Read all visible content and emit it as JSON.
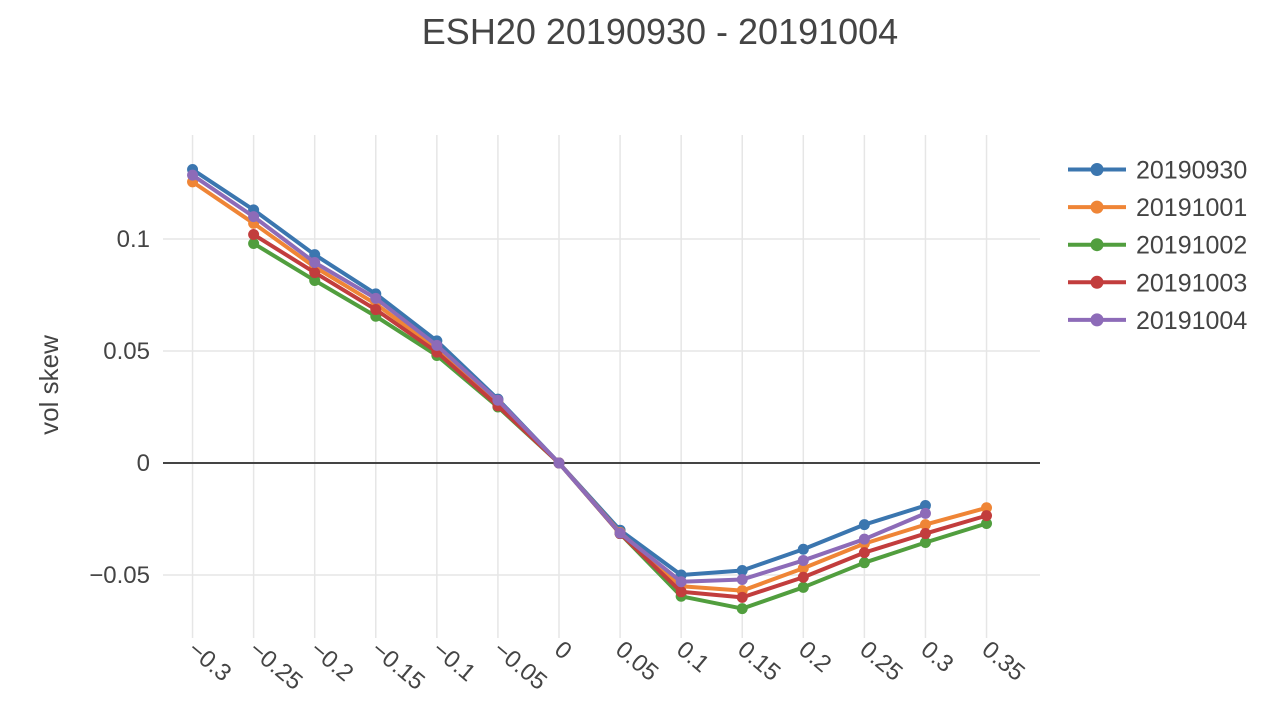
{
  "title": "ESH20 20190930 - 20191004",
  "colors": {
    "text": "#444444",
    "gridline": "#e6e6e6",
    "zeroline": "#444444",
    "background": "#ffffff"
  },
  "chart_data": {
    "type": "line",
    "title": "ESH20 20190930 - 20191004",
    "xlabel": "",
    "ylabel": "vol skew",
    "grid": true,
    "legend_position": "right",
    "xlim": [
      -0.325,
      0.394
    ],
    "ylim": [
      -0.078,
      0.146
    ],
    "x_ticks": [
      -0.3,
      -0.25,
      -0.2,
      -0.15,
      -0.1,
      -0.05,
      0,
      0.05,
      0.1,
      0.15,
      0.2,
      0.25,
      0.3,
      0.35
    ],
    "x_tick_labels": [
      "−0.3",
      "−0.25",
      "−0.2",
      "−0.15",
      "−0.1",
      "−0.05",
      "0",
      "0.05",
      "0.1",
      "0.15",
      "0.2",
      "0.25",
      "0.3",
      "0.35"
    ],
    "y_ticks": [
      0.1,
      0.05,
      0,
      -0.05
    ],
    "y_tick_labels": [
      "0.1",
      "0.05",
      "0",
      "−0.05"
    ],
    "zeroline": true,
    "series": [
      {
        "name": "20190930",
        "color": "#3b76af",
        "x": [
          -0.3,
          -0.25,
          -0.2,
          -0.15,
          -0.1,
          -0.05,
          0,
          0.05,
          0.1,
          0.15,
          0.2,
          0.25,
          0.3
        ],
        "y": [
          0.131,
          0.113,
          0.093,
          0.0755,
          0.0545,
          0.0285,
          0,
          -0.03,
          -0.05,
          -0.048,
          -0.0385,
          -0.0275,
          -0.019
        ]
      },
      {
        "name": "20191001",
        "color": "#ef8536",
        "x": [
          -0.3,
          -0.25,
          -0.2,
          -0.15,
          -0.1,
          -0.05,
          0,
          0.05,
          0.1,
          0.15,
          0.2,
          0.25,
          0.3,
          0.35
        ],
        "y": [
          0.1255,
          0.107,
          0.0875,
          0.071,
          0.051,
          0.027,
          0,
          -0.031,
          -0.055,
          -0.057,
          -0.047,
          -0.036,
          -0.0275,
          -0.02
        ]
      },
      {
        "name": "20191002",
        "color": "#519e3e",
        "x": [
          -0.25,
          -0.2,
          -0.15,
          -0.1,
          -0.05,
          0,
          0.05,
          0.1,
          0.15,
          0.2,
          0.25,
          0.3,
          0.35
        ],
        "y": [
          0.098,
          0.0815,
          0.0655,
          0.048,
          0.025,
          0,
          -0.0315,
          -0.0595,
          -0.065,
          -0.0555,
          -0.0445,
          -0.0355,
          -0.027
        ]
      },
      {
        "name": "20191003",
        "color": "#c23d3d",
        "x": [
          -0.25,
          -0.2,
          -0.15,
          -0.1,
          -0.05,
          0,
          0.05,
          0.1,
          0.15,
          0.2,
          0.25,
          0.3,
          0.35
        ],
        "y": [
          0.102,
          0.085,
          0.0685,
          0.0495,
          0.0255,
          0,
          -0.0315,
          -0.0575,
          -0.06,
          -0.051,
          -0.04,
          -0.0315,
          -0.0235
        ]
      },
      {
        "name": "20191004",
        "color": "#8d6bb8",
        "x": [
          -0.3,
          -0.25,
          -0.2,
          -0.15,
          -0.1,
          -0.05,
          0,
          0.05,
          0.1,
          0.15,
          0.2,
          0.25,
          0.3
        ],
        "y": [
          0.1285,
          0.11,
          0.0895,
          0.0735,
          0.0525,
          0.028,
          0,
          -0.0313,
          -0.053,
          -0.052,
          -0.0435,
          -0.034,
          -0.0225
        ]
      }
    ]
  }
}
